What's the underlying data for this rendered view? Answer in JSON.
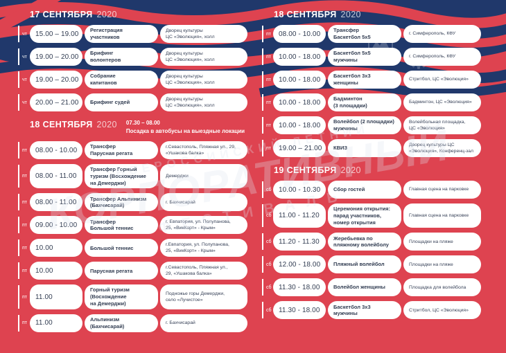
{
  "theme": {
    "background_red": "#DE4350",
    "wave_navy": "#20386B",
    "pill_white": "#FFFFFF",
    "text_dark": "#323D52"
  },
  "watermark": {
    "line1": "ВСЕРОССИЙСКИЙ ЛЕТНИЙ",
    "line2": "КОРПОРАТИВНЫЙ",
    "line3": "ФЕСТИВАЛЬ"
  },
  "columns": [
    {
      "sections": [
        {
          "title": "17 СЕНТЯБРЯ",
          "year": "2020",
          "note_time": "",
          "note_text": "",
          "rows": [
            {
              "day": "чт",
              "time": "15.00 – 19.00",
              "event": "Регистрация\nучастников",
              "location": "Дворец культуры\nЦС «Эволюция», холл"
            },
            {
              "day": "чт",
              "time": "19.00 – 20.00",
              "event": "Брифинг\nволонтеров",
              "location": "Дворец культуры\nЦС «Эволюция», холл"
            },
            {
              "day": "чт",
              "time": "19.00 – 20.00",
              "event": "Собрание\nкапитанов",
              "location": "Дворец культуры\nЦС «Эволюция», холл"
            },
            {
              "day": "чт",
              "time": "20.00 – 21.00",
              "event": "Брифинг судей",
              "location": "Дворец культуры\nЦС «Эволюция», холл"
            }
          ]
        },
        {
          "title": "18 СЕНТЯБРЯ",
          "year": "2020",
          "note_time": "07.30 – 08.00",
          "note_text": "Посадка в автобусы на выездные локации",
          "rows": [
            {
              "day": "пт",
              "time": "08.00 - 10.00",
              "event": "Трансфер\nПарусная регата",
              "location": "г.Севастополь, Пляжная ул., 29,\n«Ушакова балка»"
            },
            {
              "day": "пт",
              "time": "08.00 - 11.00",
              "event": "Трансфер Горный\nтуризм (Восхождение\nна Демерджи)",
              "location": "Демерджи"
            },
            {
              "day": "пт",
              "time": "08.00 - 11.00",
              "event": "Трансфер Альпинизм\n(Бахчисарай)",
              "location": "г. Бахчисарай"
            },
            {
              "day": "пт",
              "time": "09.00 - 10.00",
              "event": "Трансфер\nБольшой теннис",
              "location": "г. Евпатория, ул. Полупанова,\n25, «ВикКорт» - Крым»"
            },
            {
              "day": "пт",
              "time": "10.00",
              "event": "Большой теннис",
              "location": "г.Евпатория, ул. Полупанова,\n25, «ВикКорт» - Крым»"
            },
            {
              "day": "пт",
              "time": "10.00",
              "event": "Парусная регата",
              "location": "г.Севастополь, Пляжная ул.,\n29, «Ушакова балка»"
            },
            {
              "day": "пт",
              "time": "11.00",
              "event": "Горный туризм\n(Восхождение\nна Демерджи)",
              "location": "Подножье горы Демерджи,\nсело «Лучистое»"
            },
            {
              "day": "пт",
              "time": "11.00",
              "event": "Альпинизм\n(Бахчисарай)",
              "location": "г. Бахчисарай"
            }
          ]
        }
      ]
    },
    {
      "sections": [
        {
          "title": "18 СЕНТЯБРЯ",
          "year": "2020",
          "note_time": "",
          "note_text": "",
          "rows": [
            {
              "day": "пт",
              "time": "08.00 - 10.00",
              "event": "Трансфер\nБаскетбол 5х5",
              "location": "г. Симферополь, КФУ"
            },
            {
              "day": "пт",
              "time": "10.00 - 18.00",
              "event": "Баскетбол 5х5\nмужчины",
              "location": "г. Симферополь, КФУ"
            },
            {
              "day": "пт",
              "time": "10.00 - 18.00",
              "event": "Баскетбол 3х3\nженщины",
              "location": "Стритбол, ЦС «Эволюция»"
            },
            {
              "day": "пт",
              "time": "10.00 - 18.00",
              "event": "Бадминтон\n(3 площадки)",
              "location": "Бадминтон, ЦС «Эволюция»"
            },
            {
              "day": "пт",
              "time": "10.00 - 18.00",
              "event": "Волейбол (2 площадки)\nмужчины",
              "location": "Волейбольная площадка,\nЦС «Эволюция»"
            },
            {
              "day": "пт",
              "time": "19.00 – 21.00",
              "event": "КВИЗ",
              "location": "Дворец культуры ЦС\n«Эволюция», Конференц-зал"
            }
          ]
        },
        {
          "title": "19 СЕНТЯБРЯ",
          "year": "2020",
          "note_time": "",
          "note_text": "",
          "rows": [
            {
              "day": "сб",
              "time": "10.00 - 10.30",
              "event": "Сбор гостей",
              "location": "Главная сцена на парковке"
            },
            {
              "day": "сб",
              "time": "11.00 - 11.20",
              "event": "Церемония открытия:\nпарад участников,\nномер открытия",
              "location": "Главная сцена на парковке"
            },
            {
              "day": "сб",
              "time": "11.20 - 11.30",
              "event": "Жеребьевка по\nпляжному волейболу",
              "location": "Площадки на пляже"
            },
            {
              "day": "сб",
              "time": "12.00 - 18.00",
              "event": "Пляжный волейбол",
              "location": "Площадки на пляже"
            },
            {
              "day": "сб",
              "time": "11.30 - 18.00",
              "event": "Волейбол женщины",
              "location": "Площадка для волейбола"
            },
            {
              "day": "сб",
              "time": "11.30 - 18.00",
              "event": "Баскетбол 3х3\nмужчины",
              "location": "Стритбол, ЦС «Эволюция»"
            }
          ]
        }
      ]
    }
  ]
}
